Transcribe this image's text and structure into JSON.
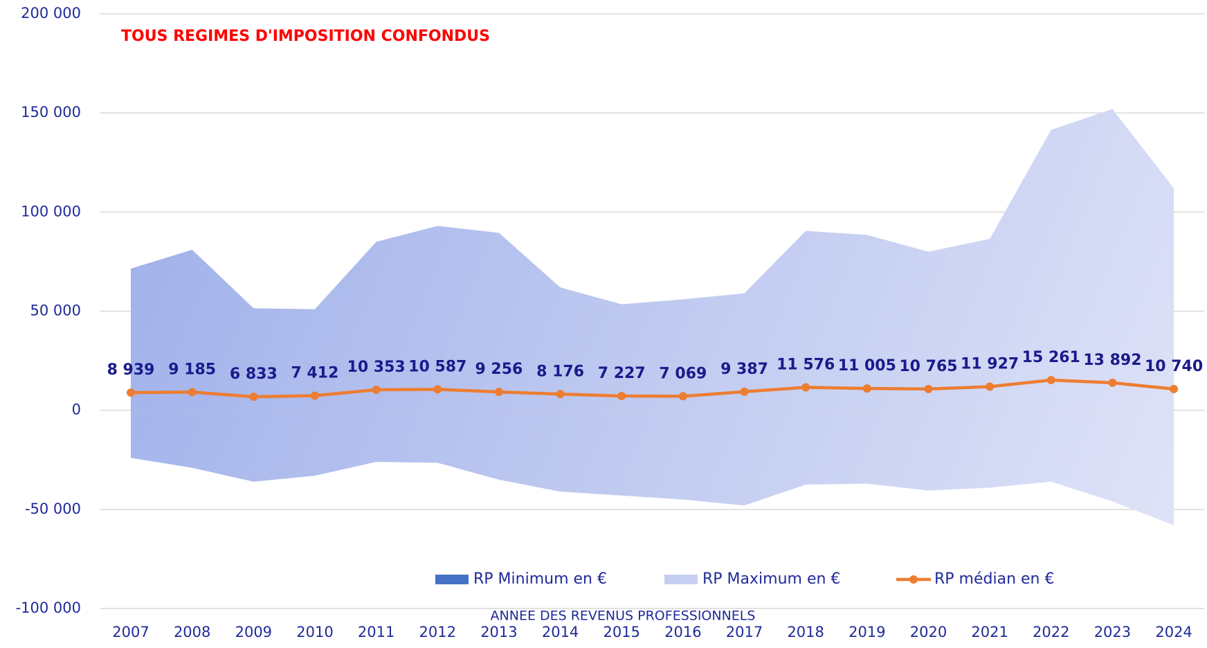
{
  "chart_data": {
    "type": "area_line",
    "title": "TOUS REGIMES D'IMPOSITION CONFONDUS",
    "x_label": "ANNEE DES REVENUS PROFESSIONNELS",
    "categories": [
      "2007",
      "2008",
      "2009",
      "2010",
      "2011",
      "2012",
      "2013",
      "2014",
      "2015",
      "2016",
      "2017",
      "2018",
      "2019",
      "2020",
      "2021",
      "2022",
      "2023",
      "2024"
    ],
    "series": [
      {
        "name": "RP Minimum en €",
        "color": "#4472c4",
        "kind": "area",
        "values": [
          -24000,
          -29000,
          -36000,
          -33000,
          -26000,
          -26500,
          -35000,
          -41000,
          -43000,
          -45000,
          -48000,
          -37500,
          -37000,
          -40500,
          -39000,
          -36000,
          -46000,
          -58000
        ]
      },
      {
        "name": "RP Maximum en €",
        "color": "#b4c0ee",
        "kind": "area",
        "values": [
          71500,
          81000,
          51500,
          51000,
          85000,
          93000,
          89500,
          62000,
          53500,
          56000,
          59000,
          90500,
          88500,
          80000,
          86500,
          141500,
          152000,
          112000
        ]
      },
      {
        "name": "RP médian en €",
        "color": "#ed7d31",
        "kind": "line",
        "values": [
          8939,
          9185,
          6833,
          7412,
          10353,
          10587,
          9256,
          8176,
          7227,
          7069,
          9387,
          11576,
          11005,
          10765,
          11927,
          15261,
          13892,
          10740
        ],
        "value_labels": [
          "8 939",
          "9 185",
          "6 833",
          "7 412",
          "10 353",
          "10 587",
          "9 256",
          "8 176",
          "7 227",
          "7 069",
          "9 387",
          "11 576",
          "11 005",
          "10 765",
          "11 927",
          "15 261",
          "13 892",
          "10 740"
        ]
      }
    ],
    "ylim": [
      -100000,
      200000
    ],
    "yticks": [
      {
        "value": -100000,
        "label": "-100 000"
      },
      {
        "value": -50000,
        "label": "-50 000"
      },
      0,
      {
        "value": 50000,
        "label": "50 000"
      },
      {
        "value": 100000,
        "label": "100 000"
      },
      {
        "value": 150000,
        "label": "150 000"
      },
      {
        "value": 200000,
        "label": "200 000"
      }
    ],
    "grid": true
  }
}
